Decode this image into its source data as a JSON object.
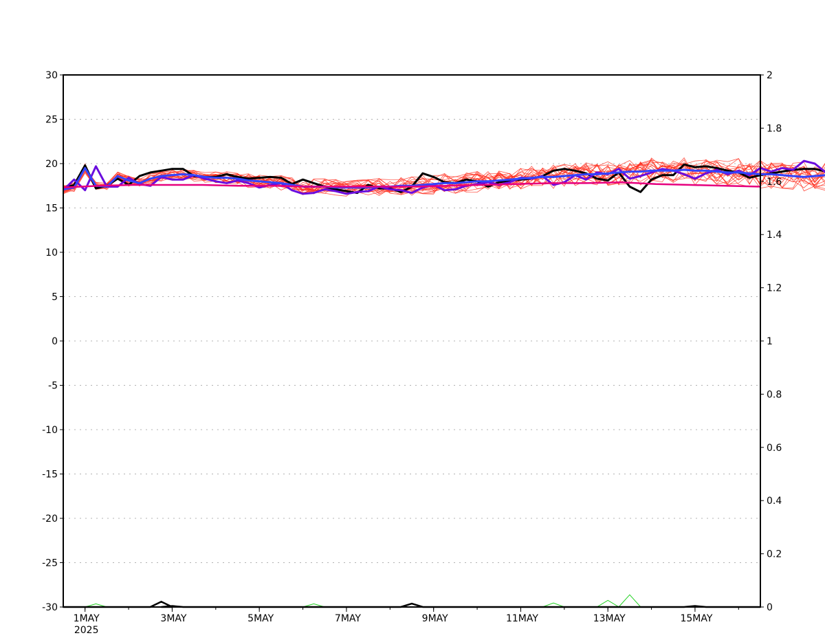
{
  "chart_data": {
    "type": "line",
    "title": "",
    "xlabel": "",
    "ylabel": "",
    "ylim": [
      -30,
      30
    ],
    "y2lim": [
      0,
      2
    ],
    "xlim": [
      "2025-04-30 12:00",
      "2025-05-16 12:00"
    ],
    "grid": "horizontal-dotted",
    "legend": "none",
    "y_ticks": [
      "-30",
      "-25",
      "-20",
      "-15",
      "-10",
      "-5",
      "0",
      "5",
      "10",
      "15",
      "20",
      "25",
      "30"
    ],
    "y2_ticks": [
      "0",
      "0.2",
      "0.4",
      "0.6",
      "0.8",
      "1",
      "1.2",
      "1.4",
      "1.6",
      "1.8",
      "2"
    ],
    "x_ticks": [
      {
        "date": "2025-05-01",
        "label": "1MAY",
        "sublabel": "2025"
      },
      {
        "date": "2025-05-03",
        "label": "3MAY"
      },
      {
        "date": "2025-05-05",
        "label": "5MAY"
      },
      {
        "date": "2025-05-07",
        "label": "7MAY"
      },
      {
        "date": "2025-05-09",
        "label": "9MAY"
      },
      {
        "date": "2025-05-11",
        "label": "11MAY"
      },
      {
        "date": "2025-05-13",
        "label": "13MAY"
      },
      {
        "date": "2025-05-15",
        "label": "15MAY"
      }
    ],
    "time_step_hours": 6,
    "series_colors": {
      "ensemble": "#ff2a1a",
      "observed": "#000000",
      "analysis": "#6a0dde",
      "ensemble_mean": "#3344ff",
      "climatology": "#e6007e",
      "precip_ensemble": "#1fd01f",
      "precip_observed": "#000000"
    },
    "series": [
      {
        "role": "observed",
        "axis": "left",
        "values": [
          17.2,
          17.6,
          19.8,
          17.2,
          17.5,
          18.3,
          17.6,
          18.6,
          19.0,
          19.2,
          19.4,
          19.4,
          18.6,
          18.5,
          18.5,
          18.8,
          18.5,
          18.3,
          18.4,
          18.5,
          18.4,
          17.7,
          18.2,
          17.8,
          17.4,
          17.1,
          16.9,
          16.7,
          17.6,
          17.2,
          17.2,
          16.8,
          17.4,
          18.9,
          18.5,
          17.9,
          17.8,
          18.2,
          18.0,
          17.4,
          17.9,
          18.1,
          18.2,
          18.3,
          18.6,
          19.2,
          19.4,
          19.2,
          18.9,
          18.3,
          18.1,
          19.0,
          17.4,
          16.8,
          18.2,
          18.7,
          18.7,
          19.9,
          19.6,
          19.7,
          19.5,
          19.2,
          19.0,
          18.4,
          18.7,
          18.9,
          19.1,
          19.3,
          19.4,
          19.4,
          19.1
        ]
      },
      {
        "role": "analysis",
        "axis": "left",
        "values": [
          17.0,
          18.2,
          17.0,
          19.7,
          17.4,
          17.4,
          18.4,
          17.7,
          17.5,
          18.5,
          18.2,
          18.2,
          18.7,
          18.3,
          18.0,
          17.8,
          18.1,
          17.8,
          17.3,
          17.6,
          17.8,
          17.0,
          16.6,
          16.7,
          17.1,
          16.9,
          16.6,
          16.8,
          16.9,
          17.4,
          17.1,
          17.0,
          16.7,
          17.3,
          17.6,
          17.0,
          17.1,
          17.5,
          17.7,
          17.9,
          17.6,
          17.9,
          18.4,
          18.3,
          18.6,
          17.6,
          17.9,
          18.7,
          18.2,
          19.0,
          18.8,
          19.4,
          18.3,
          18.6,
          19.0,
          19.4,
          19.2,
          18.8,
          18.3,
          18.9,
          19.3,
          18.8,
          19.2,
          18.7,
          19.5,
          19.1,
          19.5,
          19.3,
          20.3,
          20.0,
          19.0,
          19.1
        ]
      },
      {
        "role": "ensemble_mean",
        "axis": "left",
        "values": [
          17.1,
          17.3,
          19.5,
          17.5,
          17.4,
          18.6,
          18.1,
          17.8,
          18.3,
          18.6,
          18.7,
          18.8,
          18.7,
          18.5,
          18.4,
          18.4,
          18.3,
          18.1,
          18.0,
          17.9,
          17.8,
          17.6,
          17.4,
          17.4,
          17.4,
          17.3,
          17.3,
          17.3,
          17.3,
          17.4,
          17.4,
          17.5,
          17.5,
          17.6,
          17.7,
          17.8,
          17.8,
          17.9,
          18.0,
          18.0,
          18.1,
          18.2,
          18.3,
          18.4,
          18.5,
          18.5,
          18.6,
          18.7,
          18.8,
          18.8,
          18.9,
          19.0,
          19.1,
          19.1,
          19.2,
          19.2,
          19.2,
          19.3,
          19.2,
          19.2,
          19.1,
          19.0,
          19.0,
          18.9,
          18.8,
          18.8,
          18.7,
          18.6,
          18.5,
          18.6,
          18.7
        ]
      },
      {
        "role": "climatology",
        "axis": "left",
        "values": [
          17.3,
          17.5,
          17.6,
          17.6,
          17.6,
          17.5,
          17.5,
          17.4,
          17.4,
          17.4,
          17.4,
          17.5,
          17.6,
          17.7,
          17.8,
          17.8,
          17.9,
          17.7,
          17.6,
          17.5,
          17.4
        ]
      }
    ],
    "ensemble_members": {
      "axis": "left",
      "count": 20,
      "range": [
        15.9,
        22.2
      ]
    },
    "precipitation": {
      "axis": "right",
      "observed_peaks": [
        {
          "date": "2025-05-02 18:00",
          "value": 0.02
        },
        {
          "date": "2025-05-03 00:00",
          "value": 0.004
        },
        {
          "date": "2025-05-08 12:00",
          "value": 0.013
        },
        {
          "date": "2025-05-15 00:00",
          "value": 0.004
        }
      ],
      "ensemble_peaks": [
        {
          "date": "2025-05-01 06:00",
          "value": 0.012
        },
        {
          "date": "2025-05-06 06:00",
          "value": 0.012
        },
        {
          "date": "2025-05-11 18:00",
          "value": 0.015
        },
        {
          "date": "2025-05-13 00:00",
          "value": 0.025
        },
        {
          "date": "2025-05-13 12:00",
          "value": 0.046
        }
      ]
    }
  }
}
